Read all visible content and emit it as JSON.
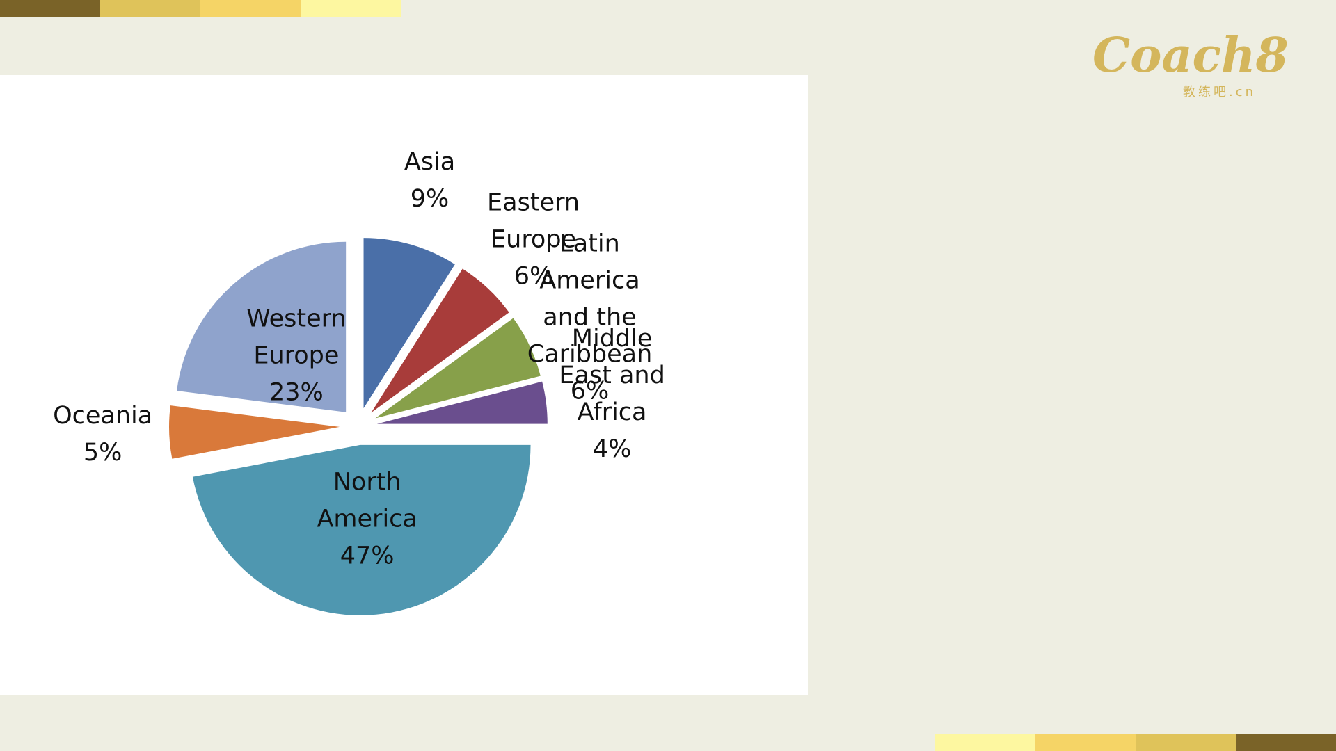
{
  "logo": {
    "text": "Coach8",
    "sub": "教练吧.cn"
  },
  "chart_data": {
    "type": "pie",
    "categories": [
      "Asia",
      "Eastern Europe",
      "Latin America and the Caribbean",
      "Middle East and Africa",
      "North America",
      "Oceania",
      "Western Europe"
    ],
    "values": [
      9,
      6,
      6,
      4,
      47,
      5,
      23
    ],
    "value_labels": [
      "9%",
      "6%",
      "6%",
      "4%",
      "47%",
      "5%",
      "23%"
    ],
    "colors": [
      "#4a6fa8",
      "#a83c3a",
      "#87a04a",
      "#6a4e8e",
      "#4f97b0",
      "#d9793a",
      "#8fa3cc"
    ]
  }
}
